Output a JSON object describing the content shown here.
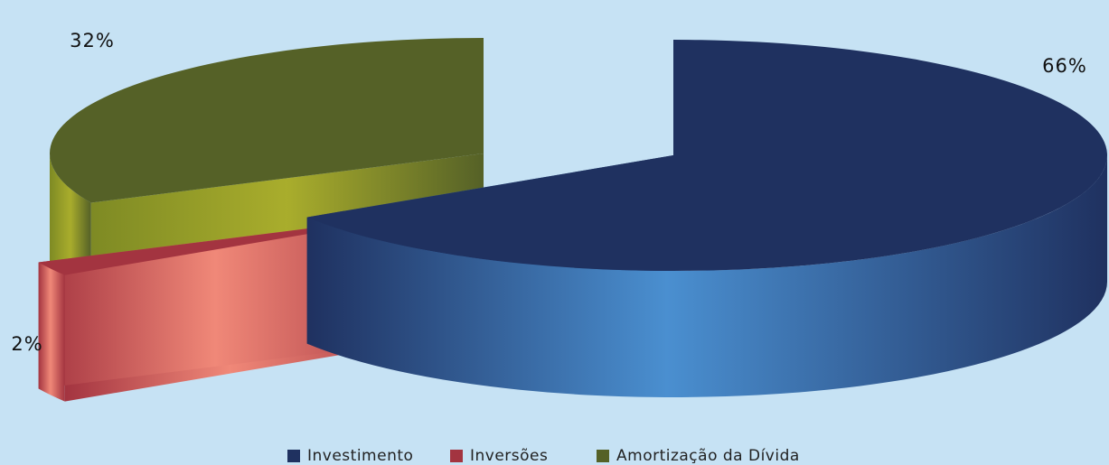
{
  "chart_data": {
    "type": "pie",
    "style": "3d-exploded",
    "title": "",
    "legend_position": "bottom",
    "slices": [
      {
        "name": "Investimento",
        "value": 66,
        "label": "66%",
        "color": "#1f3160"
      },
      {
        "name": "Inversões",
        "value": 2,
        "label": "2%",
        "color": "#a33440"
      },
      {
        "name": "Amortização da Dívida",
        "value": 32,
        "label": "32%",
        "color": "#556127"
      }
    ]
  },
  "colors": {
    "background": "#c6e2f4"
  }
}
